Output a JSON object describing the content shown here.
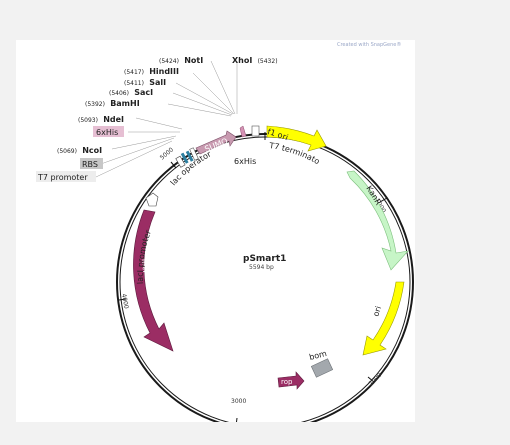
{
  "plasmid": {
    "name": "pSmart1",
    "length": "5594 bp"
  },
  "watermark": "Created with SnapGene®",
  "sites": [
    {
      "pos": "(5424)",
      "name": "NotI"
    },
    {
      "pos": "(5417)",
      "name": "HindIII"
    },
    {
      "pos": "(5411)",
      "name": "SalI"
    },
    {
      "pos": "(5406)",
      "name": "SacI"
    },
    {
      "pos": "(5392)",
      "name": "BamHI"
    },
    {
      "pos": "(5093)",
      "name": "NdeI"
    },
    {
      "pos": "(5069)",
      "name": "NcoI"
    },
    {
      "pos": "(5432)",
      "name": "XhoI"
    }
  ],
  "boxed_labels": [
    "6xHis",
    "RBS",
    "T7 promoter"
  ],
  "features": [
    {
      "name": "SUMO",
      "color": "#c89ab0"
    },
    {
      "name": "6xHis",
      "color": "#d592b4"
    },
    {
      "name": "f1 ori",
      "color": "#ffff00"
    },
    {
      "name": "KanR",
      "color": "#c7f5c7"
    },
    {
      "name": "ori",
      "color": "#ffff00"
    },
    {
      "name": "bom",
      "color": "#a3a8ad"
    },
    {
      "name": "rop",
      "color": "#9b2d64"
    },
    {
      "name": "lacI",
      "color": "#9b2d64"
    },
    {
      "name": "lacI promoter",
      "color": "#ffffff"
    },
    {
      "name": "lac operator",
      "color": "#2d7fa0"
    }
  ],
  "labels": {
    "t7_terminator": "T7 terminator",
    "sixhis_below": "6xHis",
    "lac_operator": "lac operator",
    "laci_promoter": "lacI promoter"
  },
  "ticks": [
    "1000",
    "2000",
    "3000",
    "4000",
    "5000"
  ]
}
